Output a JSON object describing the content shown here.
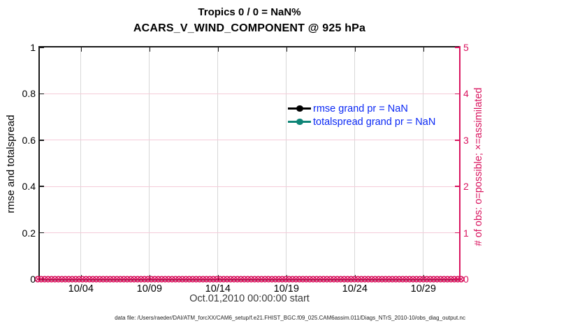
{
  "figure": {
    "title_line1": "Tropics 0 / 0 = NaN%",
    "title_line2": "ACARS_V_WIND_COMPONENT @ 925 hPa",
    "xlabel": "Oct.01,2010 00:00:00 start",
    "footer": "data file: /Users/raeder/DAI/ATM_forcXX/CAM6_setup/f.e21.FHIST_BGC.f09_025.CAM6assim.011/Diags_NTrS_2010-10/obs_diag_output.nc"
  },
  "left_axis": {
    "label": "rmse and totalspread",
    "ticks": [
      "1",
      "0.8",
      "0.6",
      "0.4",
      "0.2",
      "0"
    ]
  },
  "right_axis": {
    "label": "# of obs: o=possible; ×=assimilated",
    "ticks": [
      "5",
      "4",
      "3",
      "2",
      "1",
      "0"
    ]
  },
  "x_axis": {
    "ticks": [
      "10/04",
      "10/09",
      "10/14",
      "10/19",
      "10/24",
      "10/29"
    ]
  },
  "legend": {
    "entries": [
      {
        "label": "rmse grand pr = NaN",
        "series_color": "#000000"
      },
      {
        "label": "totalspread grand pr = NaN",
        "series_color": "#0f8577"
      }
    ]
  },
  "obs_markers": {
    "bins": 124,
    "value": 0,
    "possible_marker": "o",
    "assimilated_marker": "×"
  },
  "colors": {
    "accent_crimson": "#d9155f",
    "grid_pink": "#f5cbd9",
    "grid_gray": "#d8d8d8",
    "legend_text_blue": "#0a28f5",
    "axis_black": "#1a1a1a",
    "teal": "#0f8577"
  },
  "chart_data": {
    "type": "line",
    "title": "Tropics 0 / 0 = NaN% | ACARS_V_WIND_COMPONENT @ 925 hPa",
    "xlabel": "Oct.01,2010 00:00:00 start",
    "ylabel": "rmse and totalspread",
    "ylabel_right": "# of obs: o=possible; ×=assimilated",
    "xlim": [
      "2010-10-01 00:00",
      "2010-10-31 12:00"
    ],
    "x_ticks": [
      "10/04",
      "10/09",
      "10/14",
      "10/19",
      "10/24",
      "10/29"
    ],
    "ylim": [
      0,
      1
    ],
    "ylim_right": [
      0,
      5
    ],
    "grid": true,
    "legend_position": "upper right inside, no box",
    "series": [
      {
        "name": "rmse grand pr = NaN",
        "axis": "left",
        "color": "#000000",
        "marker": "filled-circle",
        "values": []
      },
      {
        "name": "totalspread grand pr = NaN",
        "axis": "left",
        "color": "#0f8577",
        "marker": "filled-circle",
        "values": []
      },
      {
        "name": "# of obs possible (o)",
        "axis": "right",
        "color": "#d9155f",
        "marker": "o",
        "constant_value": 0
      },
      {
        "name": "# of obs assimilated (×)",
        "axis": "right",
        "color": "#d9155f",
        "marker": "×",
        "constant_value": 0
      }
    ],
    "note": "rmse and totalspread are NaN so no curves are drawn; obs counts are 0 at every time bin across October 2010, shown as a dense crimson row of overlapping o and × markers along y=0"
  }
}
